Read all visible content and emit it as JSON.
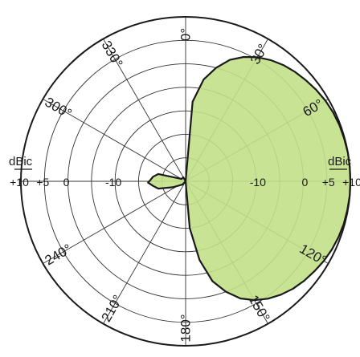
{
  "chart_data": {
    "type": "polar",
    "title": "",
    "radial_unit": "dBic",
    "radial_ticks": [
      {
        "value": 10,
        "labels": [
          "+10",
          "+10"
        ]
      },
      {
        "value": 5,
        "labels": [
          "+5",
          "+5"
        ]
      },
      {
        "value": 0,
        "labels": [
          "0",
          "0"
        ]
      },
      {
        "value": -10,
        "labels": [
          "-10",
          "-10"
        ]
      }
    ],
    "rlim": [
      -25,
      10
    ],
    "angle_labels": [
      "0",
      "30",
      "60",
      "120",
      "150",
      "180",
      "210",
      "240",
      "300",
      "330"
    ],
    "angle_label_values": [
      0,
      30,
      60,
      120,
      150,
      180,
      210,
      240,
      300,
      330
    ],
    "degree_symbol": "°",
    "grid": true,
    "fill_color": "#c3e08a",
    "edge_color": "#1a1a1a",
    "series": [
      {
        "theta": [
          0,
          5,
          10,
          15,
          20,
          25,
          30,
          35,
          40,
          45,
          50,
          55,
          60,
          65,
          70,
          75,
          80,
          85,
          90,
          95,
          100,
          105,
          110,
          115,
          120,
          125,
          130,
          135,
          140,
          145,
          150,
          155,
          160,
          165,
          170,
          175,
          180,
          200,
          225,
          245,
          255,
          262,
          268,
          272,
          278,
          285,
          300,
          330,
          345,
          355
        ],
        "r": [
          -25,
          -8,
          -3,
          0,
          2.5,
          4.2,
          5.5,
          6.5,
          7.3,
          7.9,
          8.4,
          8.9,
          9.3,
          9.6,
          9.8,
          9.9,
          10.0,
          10.0,
          10.0,
          10.0,
          9.9,
          9.8,
          9.6,
          9.3,
          8.9,
          8.4,
          7.9,
          7.3,
          6.5,
          5.5,
          4.2,
          2.5,
          0,
          -3,
          -8,
          -15,
          -25,
          -25,
          -24,
          -22,
          -19,
          -18,
          -17,
          -17.5,
          -18,
          -19,
          -24,
          -24,
          -25,
          -25
        ]
      }
    ]
  }
}
